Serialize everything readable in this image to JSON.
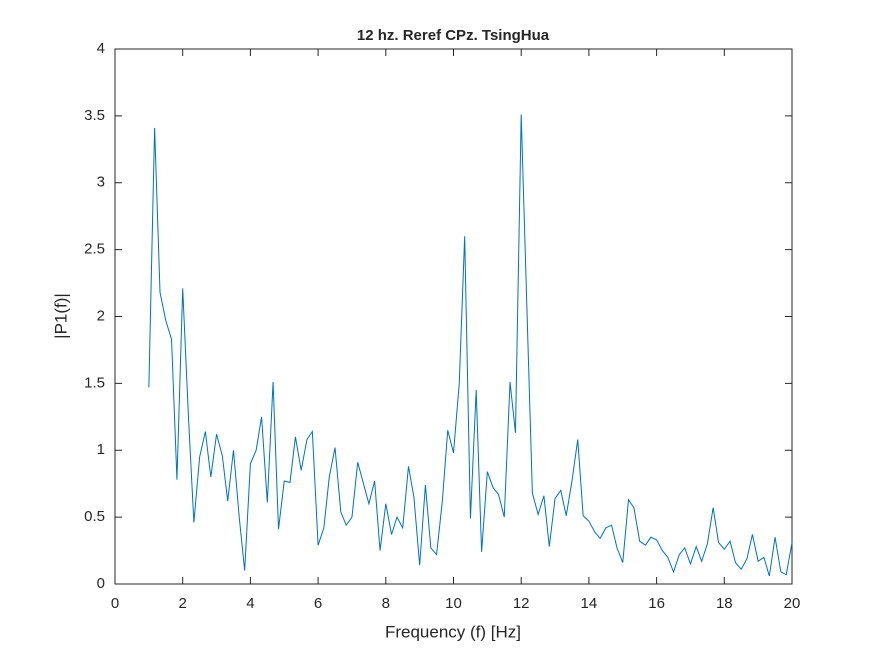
{
  "chart_data": {
    "type": "line",
    "title": "12 hz. Reref CPz. TsingHua",
    "xlabel": "Frequency (f) [Hz]",
    "ylabel": "|P1(f)|",
    "xlim": [
      0,
      20
    ],
    "ylim": [
      0,
      4
    ],
    "xticks": [
      0,
      2,
      4,
      6,
      8,
      10,
      12,
      14,
      16,
      18,
      20
    ],
    "yticks": [
      0,
      0.5,
      1,
      1.5,
      2,
      2.5,
      3,
      3.5,
      4
    ],
    "x": [
      1,
      1.17,
      1.33,
      1.5,
      1.67,
      1.83,
      2,
      2.17,
      2.33,
      2.5,
      2.67,
      2.83,
      3,
      3.17,
      3.33,
      3.5,
      3.67,
      3.83,
      4,
      4.17,
      4.33,
      4.5,
      4.67,
      4.83,
      5,
      5.17,
      5.33,
      5.5,
      5.67,
      5.83,
      6,
      6.17,
      6.33,
      6.5,
      6.67,
      6.83,
      7,
      7.17,
      7.33,
      7.5,
      7.67,
      7.83,
      8,
      8.17,
      8.33,
      8.5,
      8.67,
      8.83,
      9,
      9.17,
      9.33,
      9.5,
      9.67,
      9.83,
      10,
      10.17,
      10.33,
      10.5,
      10.67,
      10.83,
      11,
      11.17,
      11.33,
      11.5,
      11.67,
      11.83,
      12,
      12.17,
      12.33,
      12.5,
      12.67,
      12.83,
      13,
      13.17,
      13.33,
      13.5,
      13.67,
      13.83,
      14,
      14.17,
      14.33,
      14.5,
      14.67,
      14.83,
      15,
      15.17,
      15.33,
      15.5,
      15.67,
      15.83,
      16,
      16.17,
      16.33,
      16.5,
      16.67,
      16.83,
      17,
      17.17,
      17.33,
      17.5,
      17.67,
      17.83,
      18,
      18.17,
      18.33,
      18.5,
      18.67,
      18.83,
      19,
      19.17,
      19.33,
      19.5,
      19.67,
      19.83,
      20
    ],
    "series": [
      {
        "name": "P1",
        "color": "#0072bd",
        "values": [
          1.47,
          3.41,
          2.18,
          1.97,
          1.83,
          0.78,
          2.21,
          1.25,
          0.46,
          0.95,
          1.14,
          0.8,
          1.12,
          0.96,
          0.62,
          1.0,
          0.5,
          0.1,
          0.9,
          1.0,
          1.25,
          0.61,
          1.51,
          0.41,
          0.77,
          0.76,
          1.1,
          0.85,
          1.08,
          1.14,
          0.29,
          0.42,
          0.8,
          1.02,
          0.54,
          0.44,
          0.5,
          0.91,
          0.76,
          0.6,
          0.77,
          0.25,
          0.6,
          0.37,
          0.5,
          0.42,
          0.88,
          0.65,
          0.14,
          0.74,
          0.27,
          0.22,
          0.62,
          1.15,
          0.98,
          1.5,
          2.6,
          0.49,
          1.45,
          0.24,
          0.84,
          0.72,
          0.67,
          0.5,
          1.51,
          1.13,
          3.51,
          2.05,
          0.68,
          0.52,
          0.66,
          0.28,
          0.64,
          0.7,
          0.51,
          0.77,
          1.08,
          0.51,
          0.47,
          0.39,
          0.34,
          0.42,
          0.44,
          0.27,
          0.16,
          0.63,
          0.57,
          0.32,
          0.29,
          0.35,
          0.33,
          0.25,
          0.2,
          0.09,
          0.22,
          0.27,
          0.15,
          0.28,
          0.17,
          0.3,
          0.57,
          0.31,
          0.26,
          0.32,
          0.16,
          0.11,
          0.19,
          0.37,
          0.17,
          0.2,
          0.06,
          0.35,
          0.09,
          0.07,
          0.31
        ]
      }
    ]
  }
}
